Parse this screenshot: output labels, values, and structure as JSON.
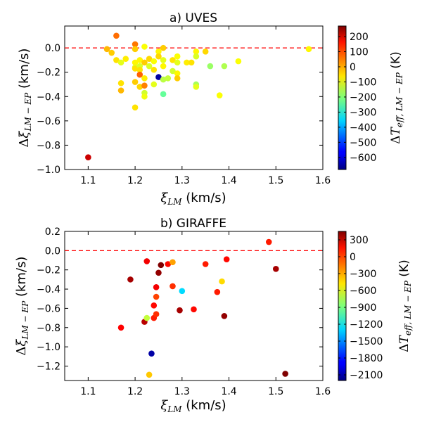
{
  "chart_data": [
    {
      "type": "scatter",
      "title": "a) UVES",
      "xlabel": "ξ_LM (km/s)",
      "ylabel": "Δξ_LM−EP (km/s)",
      "xlim": [
        1.05,
        1.6
      ],
      "ylim": [
        -1.0,
        0.18
      ],
      "xticks": [
        "1.1",
        "1.2",
        "1.3",
        "1.4",
        "1.5",
        "1.6"
      ],
      "yticks": [
        "0.0",
        "−0.2",
        "−0.4",
        "−0.6",
        "−0.8",
        "−1.0"
      ],
      "reference_line": {
        "y": 0.0,
        "color": "#ff0000",
        "style": "dashed"
      },
      "colorbar": {
        "label": "ΔT_eff,LM−EP (K)",
        "min": -680,
        "max": 270,
        "ticks": [
          "200",
          "100",
          "0",
          "−100",
          "−200",
          "−300",
          "−400",
          "−500",
          "−600"
        ]
      },
      "points": [
        {
          "x": 1.1,
          "y": -0.9,
          "c": 200
        },
        {
          "x": 1.14,
          "y": -0.01,
          "c": -20
        },
        {
          "x": 1.15,
          "y": -0.04,
          "c": -40
        },
        {
          "x": 1.16,
          "y": 0.1,
          "c": 50
        },
        {
          "x": 1.16,
          "y": -0.1,
          "c": -60
        },
        {
          "x": 1.17,
          "y": -0.12,
          "c": -110
        },
        {
          "x": 1.17,
          "y": -0.29,
          "c": -60
        },
        {
          "x": 1.17,
          "y": -0.35,
          "c": -20
        },
        {
          "x": 1.18,
          "y": -0.09,
          "c": -70
        },
        {
          "x": 1.2,
          "y": 0.03,
          "c": 40
        },
        {
          "x": 1.2,
          "y": -0.01,
          "c": -40
        },
        {
          "x": 1.2,
          "y": -0.12,
          "c": -80
        },
        {
          "x": 1.2,
          "y": -0.16,
          "c": -110
        },
        {
          "x": 1.2,
          "y": -0.17,
          "c": -60
        },
        {
          "x": 1.2,
          "y": -0.28,
          "c": -40
        },
        {
          "x": 1.2,
          "y": -0.49,
          "c": -60
        },
        {
          "x": 1.21,
          "y": -0.1,
          "c": -80
        },
        {
          "x": 1.21,
          "y": -0.15,
          "c": -120
        },
        {
          "x": 1.21,
          "y": -0.18,
          "c": -60
        },
        {
          "x": 1.21,
          "y": -0.22,
          "c": 60
        },
        {
          "x": 1.21,
          "y": -0.32,
          "c": -50
        },
        {
          "x": 1.22,
          "y": 0.01,
          "c": -90
        },
        {
          "x": 1.22,
          "y": -0.12,
          "c": -40
        },
        {
          "x": 1.22,
          "y": -0.25,
          "c": -70
        },
        {
          "x": 1.22,
          "y": -0.31,
          "c": 30
        },
        {
          "x": 1.22,
          "y": -0.37,
          "c": -130
        },
        {
          "x": 1.22,
          "y": -0.4,
          "c": -100
        },
        {
          "x": 1.23,
          "y": -0.09,
          "c": -50
        },
        {
          "x": 1.23,
          "y": -0.15,
          "c": -120
        },
        {
          "x": 1.24,
          "y": -0.11,
          "c": -90
        },
        {
          "x": 1.24,
          "y": -0.18,
          "c": -60
        },
        {
          "x": 1.24,
          "y": -0.3,
          "c": -110
        },
        {
          "x": 1.25,
          "y": -0.03,
          "c": -80
        },
        {
          "x": 1.25,
          "y": -0.07,
          "c": -50
        },
        {
          "x": 1.25,
          "y": -0.24,
          "c": -650
        },
        {
          "x": 1.26,
          "y": 0.0,
          "c": -40
        },
        {
          "x": 1.26,
          "y": -0.1,
          "c": -110
        },
        {
          "x": 1.26,
          "y": -0.15,
          "c": -80
        },
        {
          "x": 1.26,
          "y": -0.26,
          "c": -150
        },
        {
          "x": 1.26,
          "y": -0.38,
          "c": -230
        },
        {
          "x": 1.27,
          "y": -0.25,
          "c": -140
        },
        {
          "x": 1.28,
          "y": -0.1,
          "c": -60
        },
        {
          "x": 1.28,
          "y": -0.19,
          "c": -130
        },
        {
          "x": 1.29,
          "y": -0.07,
          "c": -90
        },
        {
          "x": 1.29,
          "y": -0.12,
          "c": -110
        },
        {
          "x": 1.29,
          "y": -0.21,
          "c": -80
        },
        {
          "x": 1.29,
          "y": -0.25,
          "c": -40
        },
        {
          "x": 1.31,
          "y": -0.12,
          "c": -70
        },
        {
          "x": 1.32,
          "y": -0.12,
          "c": -60
        },
        {
          "x": 1.33,
          "y": -0.03,
          "c": -80
        },
        {
          "x": 1.33,
          "y": -0.07,
          "c": -120
        },
        {
          "x": 1.33,
          "y": -0.3,
          "c": -170
        },
        {
          "x": 1.33,
          "y": -0.32,
          "c": -110
        },
        {
          "x": 1.35,
          "y": -0.03,
          "c": -50
        },
        {
          "x": 1.36,
          "y": -0.15,
          "c": -180
        },
        {
          "x": 1.38,
          "y": -0.39,
          "c": -90
        },
        {
          "x": 1.39,
          "y": -0.15,
          "c": -160
        },
        {
          "x": 1.42,
          "y": -0.11,
          "c": -90
        },
        {
          "x": 1.57,
          "y": -0.01,
          "c": -80
        }
      ]
    },
    {
      "type": "scatter",
      "title": "b) GIRAFFE",
      "xlabel": "ξ_LM (km/s)",
      "ylabel": "Δξ_LM−EP (km/s)",
      "xlim": [
        1.05,
        1.6
      ],
      "ylim": [
        -1.35,
        0.2
      ],
      "xticks": [
        "1.1",
        "1.2",
        "1.3",
        "1.4",
        "1.5",
        "1.6"
      ],
      "yticks": [
        "0.2",
        "0.0",
        "−0.2",
        "−0.4",
        "−0.6",
        "−0.8",
        "−1.0",
        "−1.2"
      ],
      "reference_line": {
        "y": 0.0,
        "color": "#ff0000",
        "style": "dashed"
      },
      "colorbar": {
        "label": "ΔT_eff,LM−EP (K)",
        "min": -2200,
        "max": 450,
        "ticks": [
          "300",
          "0",
          "−300",
          "−600",
          "−900",
          "−1200",
          "−1500",
          "−1800",
          "−2100"
        ]
      },
      "points": [
        {
          "x": 1.17,
          "y": -0.8,
          "c": 120
        },
        {
          "x": 1.19,
          "y": -0.3,
          "c": 350
        },
        {
          "x": 1.22,
          "y": -0.74,
          "c": 300
        },
        {
          "x": 1.225,
          "y": -0.7,
          "c": -700
        },
        {
          "x": 1.225,
          "y": -0.11,
          "c": 150
        },
        {
          "x": 1.23,
          "y": -1.29,
          "c": -400
        },
        {
          "x": 1.235,
          "y": -1.07,
          "c": -2100
        },
        {
          "x": 1.24,
          "y": -0.7,
          "c": 50
        },
        {
          "x": 1.24,
          "y": -0.57,
          "c": 100
        },
        {
          "x": 1.245,
          "y": -0.66,
          "c": 0
        },
        {
          "x": 1.245,
          "y": -0.48,
          "c": -50
        },
        {
          "x": 1.245,
          "y": -0.38,
          "c": 150
        },
        {
          "x": 1.25,
          "y": -0.23,
          "c": 400
        },
        {
          "x": 1.255,
          "y": -0.15,
          "c": 450
        },
        {
          "x": 1.27,
          "y": -0.14,
          "c": 100
        },
        {
          "x": 1.28,
          "y": -0.12,
          "c": -300
        },
        {
          "x": 1.28,
          "y": -0.37,
          "c": 0
        },
        {
          "x": 1.295,
          "y": -0.62,
          "c": 350
        },
        {
          "x": 1.3,
          "y": -0.42,
          "c": -1300
        },
        {
          "x": 1.325,
          "y": -0.61,
          "c": 100
        },
        {
          "x": 1.35,
          "y": -0.14,
          "c": 50
        },
        {
          "x": 1.375,
          "y": -0.43,
          "c": 50
        },
        {
          "x": 1.385,
          "y": -0.32,
          "c": -450
        },
        {
          "x": 1.39,
          "y": -0.68,
          "c": 400
        },
        {
          "x": 1.395,
          "y": -0.09,
          "c": 100
        },
        {
          "x": 1.485,
          "y": 0.09,
          "c": 50
        },
        {
          "x": 1.5,
          "y": -0.19,
          "c": 350
        },
        {
          "x": 1.52,
          "y": -1.28,
          "c": 450
        }
      ]
    }
  ]
}
